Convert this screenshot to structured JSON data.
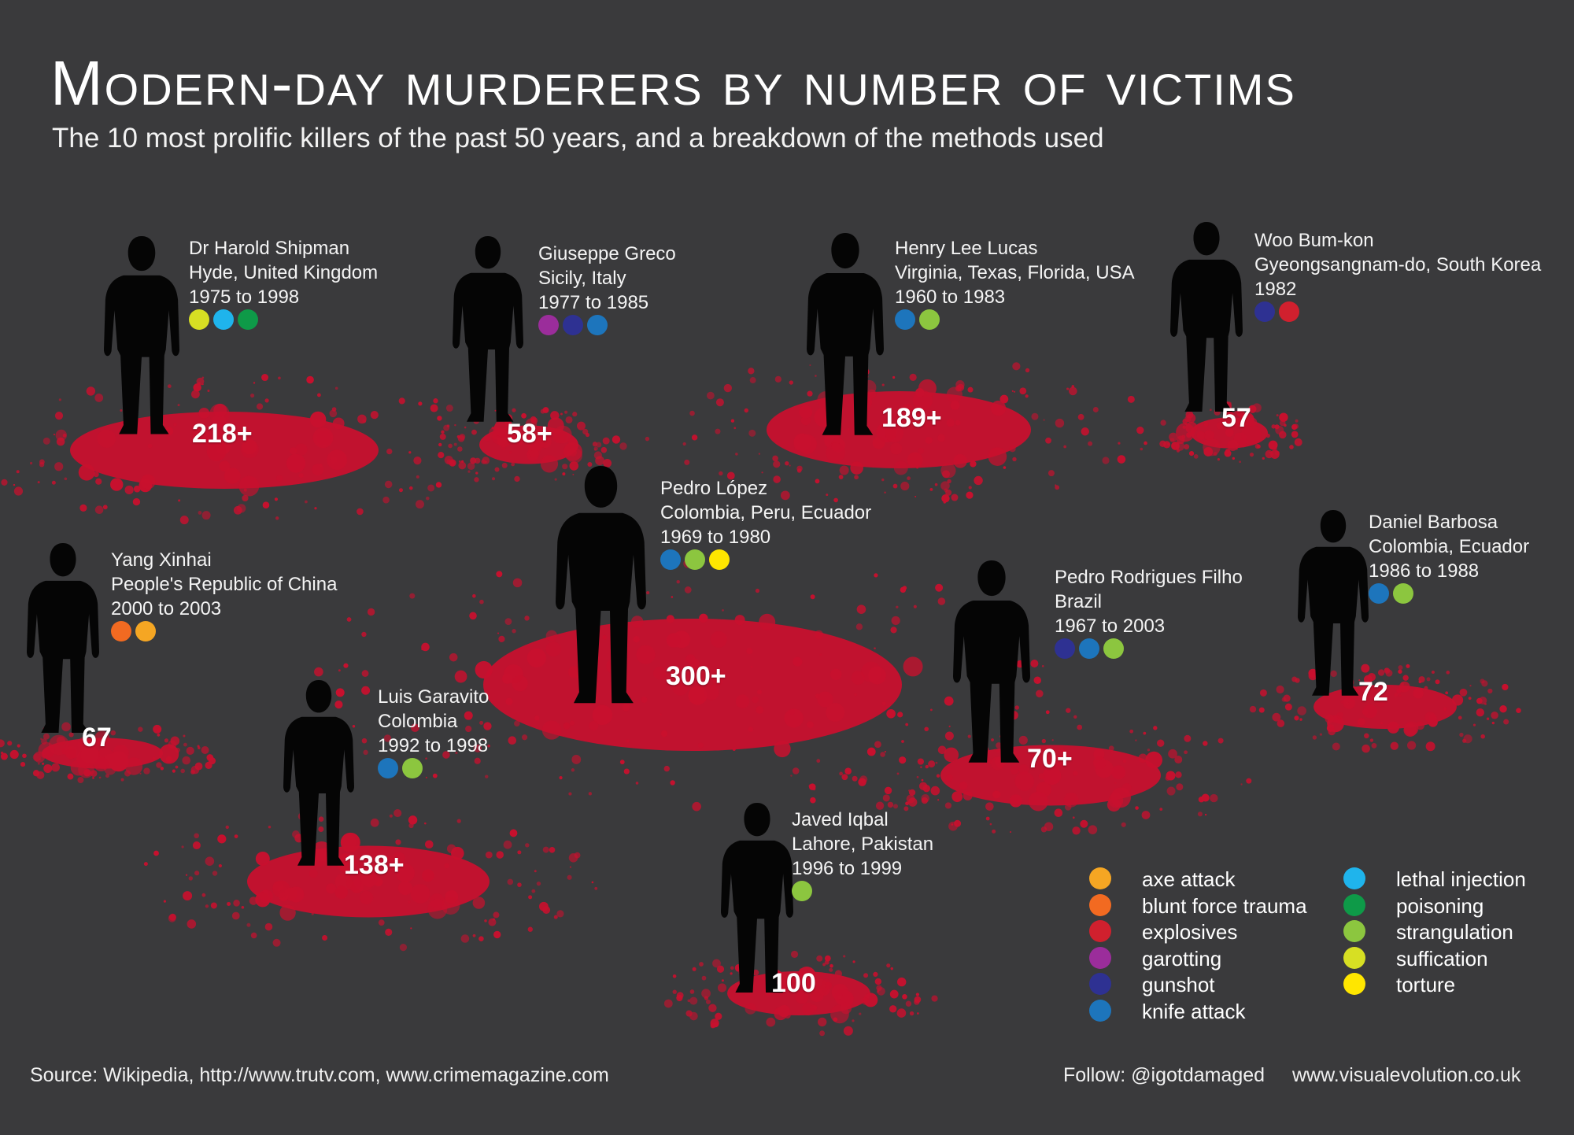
{
  "title": "Modern-day murderers by number of victims",
  "subtitle": "The 10 most prolific killers of the past 50 years, and a breakdown of the methods used",
  "colors": {
    "background": "#3a3a3c",
    "blood": "#c8102e",
    "axe attack": "#f5a623",
    "blunt force trauma": "#f26a21",
    "explosives": "#d0202e",
    "garotting": "#9b2d9b",
    "gunshot": "#2e3192",
    "knife attack": "#1d75bc",
    "lethal injection": "#1fb4ec",
    "poisoning": "#0e9a48",
    "strangulation": "#8cc63f",
    "suffication": "#d7df23",
    "torture": "#ffe600"
  },
  "killers": [
    {
      "name": "Dr Harold Shipman",
      "location": "Hyde, United Kingdom",
      "years": "1975 to 1998",
      "victims": "218+",
      "methods": [
        "suffication",
        "lethal injection",
        "poisoning"
      ]
    },
    {
      "name": "Giuseppe Greco",
      "location": "Sicily, Italy",
      "years": "1977 to 1985",
      "victims": "58+",
      "methods": [
        "garotting",
        "gunshot",
        "knife attack"
      ]
    },
    {
      "name": "Henry Lee Lucas",
      "location": "Virginia, Texas, Florida, USA",
      "years": "1960 to 1983",
      "victims": "189+",
      "methods": [
        "knife attack",
        "strangulation"
      ]
    },
    {
      "name": "Woo Bum-kon",
      "location": "Gyeongsangnam-do, South Korea",
      "years": "1982",
      "victims": "57",
      "methods": [
        "gunshot",
        "explosives"
      ]
    },
    {
      "name": "Pedro López",
      "location": "Colombia, Peru, Ecuador",
      "years": "1969 to 1980",
      "victims": "300+",
      "methods": [
        "knife attack",
        "strangulation",
        "torture"
      ]
    },
    {
      "name": "Yang Xinhai",
      "location": "People's Republic of China",
      "years": "2000 to 2003",
      "victims": "67",
      "methods": [
        "blunt force trauma",
        "axe attack"
      ]
    },
    {
      "name": "Pedro Rodrigues Filho",
      "location": "Brazil",
      "years": "1967 to 2003",
      "victims": "70+",
      "methods": [
        "gunshot",
        "knife attack",
        "strangulation"
      ]
    },
    {
      "name": "Daniel Barbosa",
      "location": "Colombia, Ecuador",
      "years": "1986 to 1988",
      "victims": "72",
      "methods": [
        "knife attack",
        "strangulation"
      ]
    },
    {
      "name": "Luis Garavito",
      "location": "Colombia",
      "years": "1992 to 1998",
      "victims": "138+",
      "methods": [
        "knife attack",
        "strangulation"
      ]
    },
    {
      "name": "Javed Iqbal",
      "location": "Lahore, Pakistan",
      "years": "1996 to 1999",
      "victims": "100",
      "methods": [
        "strangulation"
      ]
    }
  ],
  "legend": {
    "left": [
      "axe attack",
      "blunt force trauma",
      "explosives",
      "garotting",
      "gunshot",
      "knife attack"
    ],
    "right": [
      "lethal injection",
      "poisoning",
      "strangulation",
      "suffication",
      "torture"
    ]
  },
  "footer": {
    "source": "Source: Wikipedia, http://www.trutv.com, www.crimemagazine.com",
    "follow": "Follow:  @igotdamaged",
    "website": "www.visualevolution.co.uk"
  }
}
